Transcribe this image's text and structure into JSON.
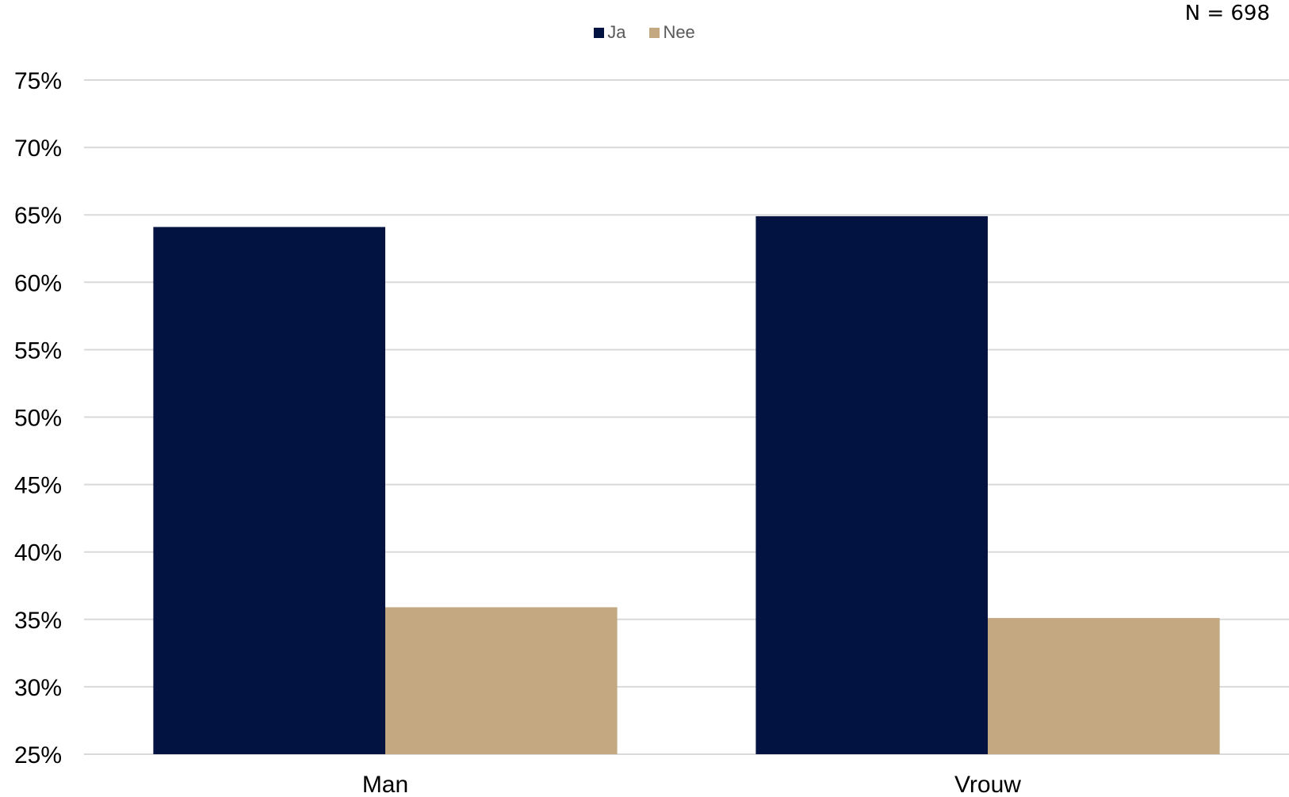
{
  "sample_size": "N = 698",
  "chart_data": {
    "type": "bar",
    "categories": [
      "Man",
      "Vrouw"
    ],
    "series": [
      {
        "name": "Ja",
        "values": [
          64.1,
          64.9
        ],
        "color": "#021241"
      },
      {
        "name": "Nee",
        "values": [
          35.9,
          35.1
        ],
        "color": "#c4a881"
      }
    ],
    "ylim": [
      25,
      75
    ],
    "yticks": [
      25,
      30,
      35,
      40,
      45,
      50,
      55,
      60,
      65,
      70,
      75
    ],
    "ytick_labels": [
      "25%",
      "30%",
      "35%",
      "40%",
      "45%",
      "50%",
      "55%",
      "60%",
      "65%",
      "70%",
      "75%"
    ],
    "grid": true,
    "legend": "top-center",
    "gridline_color": "#d9d9d9",
    "axis_text_color": "#000000"
  }
}
